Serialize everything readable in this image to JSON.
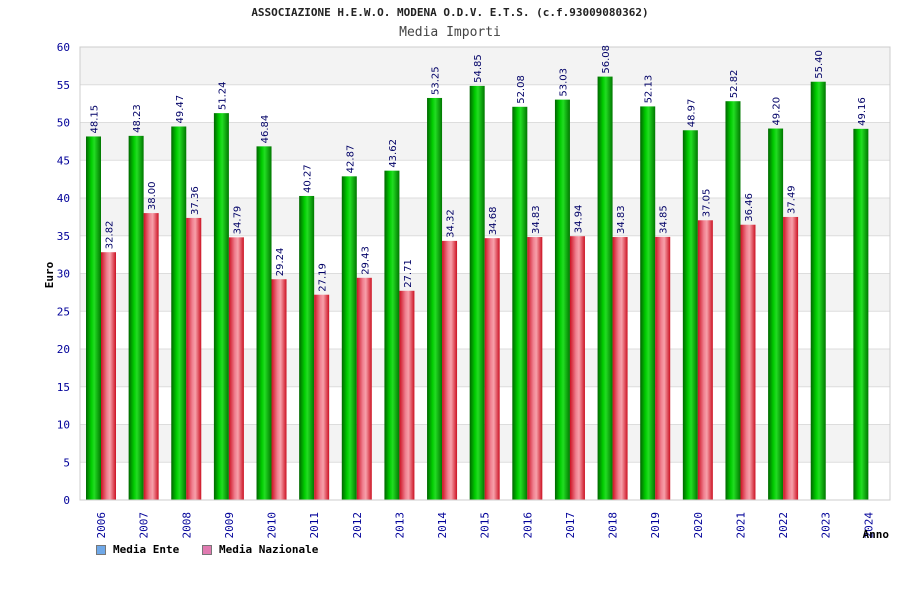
{
  "chart_data": {
    "type": "bar",
    "title": "ASSOCIAZIONE H.E.W.O. MODENA O.D.V. E.T.S. (c.f.93009080362)",
    "subtitle": "Media Importi",
    "xlabel": "Anno",
    "ylabel": "Euro",
    "ylim": [
      0,
      60
    ],
    "yticks": [
      0,
      5,
      10,
      15,
      20,
      25,
      30,
      35,
      40,
      45,
      50,
      55,
      60
    ],
    "grid": true,
    "legend_position": "bottom-left",
    "categories": [
      "2006",
      "2007",
      "2008",
      "2009",
      "2010",
      "2011",
      "2012",
      "2013",
      "2014",
      "2015",
      "2016",
      "2017",
      "2018",
      "2019",
      "2020",
      "2021",
      "2022",
      "2023",
      "2024"
    ],
    "series": [
      {
        "name": "Media Ente",
        "values": [
          48.15,
          48.23,
          49.47,
          51.24,
          46.84,
          40.27,
          42.87,
          43.62,
          53.25,
          54.85,
          52.08,
          53.03,
          56.08,
          52.13,
          48.97,
          52.82,
          49.2,
          55.4,
          49.16
        ],
        "labels": [
          "48.15",
          "48.23",
          "49.47",
          "51.24",
          "46.84",
          "40.27",
          "42.87",
          "43.62",
          "53.25",
          "54.85",
          "52.08",
          "53.03",
          "56.08",
          "52.13",
          "48.97",
          "52.82",
          "49.20",
          "55.40",
          "49.16"
        ]
      },
      {
        "name": "Media Nazionale",
        "values": [
          32.82,
          38.0,
          37.36,
          34.79,
          29.24,
          27.19,
          29.43,
          27.71,
          34.32,
          34.68,
          34.83,
          34.94,
          34.83,
          34.85,
          37.05,
          36.46,
          37.49,
          null,
          null
        ],
        "labels": [
          "32.82",
          "38.00",
          "37.36",
          "34.79",
          "29.24",
          "27.19",
          "29.43",
          "27.71",
          "34.32",
          "34.68",
          "34.83",
          "34.94",
          "34.83",
          "34.85",
          "37.05",
          "36.46",
          "37.49",
          "",
          ""
        ]
      }
    ]
  },
  "legend": {
    "ente_label": "Media Ente",
    "nazionale_label": "Media Nazionale",
    "ente_color": "#6fa8e8",
    "nazionale_color": "#e07ab0"
  },
  "colors": {
    "ente_bar": "#00aa00",
    "nazionale_bar": "#dd2233",
    "tick_text": "#000099",
    "value_text": "#000066",
    "grid_band": "#f3f3f3"
  }
}
